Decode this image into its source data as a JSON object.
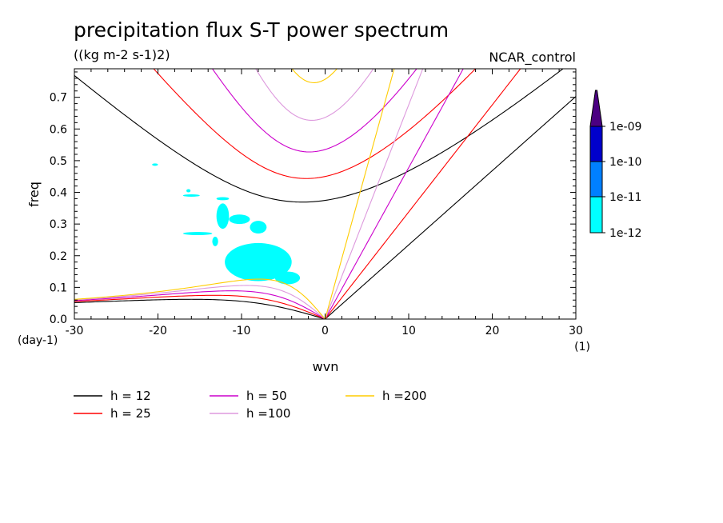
{
  "chart_data": {
    "type": "heatmap",
    "title": "precipitation flux S-T power spectrum",
    "units": "((kg m-2 s-1)2)",
    "case_label": "NCAR_control",
    "xlabel": "wvn",
    "ylabel": "freq",
    "x_unit_label": "(1)",
    "y_unit_label": "(day-1)",
    "xlim": [
      -30,
      30
    ],
    "ylim": [
      0,
      0.79
    ],
    "x_ticks": [
      -30,
      -20,
      -10,
      0,
      10,
      20,
      30
    ],
    "y_ticks": [
      0,
      0.1,
      0.2,
      0.3,
      0.4,
      0.5,
      0.6,
      0.7
    ],
    "x_tick_labels": [
      "-30",
      "-20",
      "-10",
      "0",
      "10",
      "20",
      "30"
    ],
    "y_tick_labels": [
      "0.0",
      "0.1",
      "0.2",
      "0.3",
      "0.4",
      "0.5",
      "0.6",
      "0.7"
    ],
    "colorbar": {
      "levels": [
        "1e-12",
        "1e-11",
        "1e-10",
        "1e-09"
      ],
      "colors": [
        "#00ffff",
        "#0080ff",
        "#0000cc",
        "#4b0082"
      ]
    },
    "shaded_regions": [
      {
        "level": "1e-12",
        "x": [
          -20.7,
          -20
        ],
        "y": [
          0.485,
          0.49
        ]
      },
      {
        "level": "1e-12",
        "x": [
          -16.6,
          -16.1
        ],
        "y": [
          0.4,
          0.41
        ]
      },
      {
        "level": "1e-12",
        "x": [
          -17,
          -15
        ],
        "y": [
          0.39,
          0.39
        ]
      },
      {
        "level": "1e-12",
        "x": [
          -17,
          -13.5
        ],
        "y": [
          0.275,
          0.265
        ]
      },
      {
        "level": "1e-12",
        "x": [
          -13,
          -11.5
        ],
        "y": [
          0.375,
          0.385
        ]
      },
      {
        "level": "1e-12",
        "x": [
          -13,
          -11.5
        ],
        "y": [
          0.285,
          0.365
        ]
      },
      {
        "level": "1e-12",
        "x": [
          -11.5,
          -9
        ],
        "y": [
          0.3,
          0.33
        ]
      },
      {
        "level": "1e-12",
        "x": [
          -9,
          -7
        ],
        "y": [
          0.27,
          0.31
        ]
      },
      {
        "level": "1e-12",
        "x": [
          -13.5,
          -12.8
        ],
        "y": [
          0.23,
          0.26
        ]
      },
      {
        "level": "1e-12",
        "x": [
          -12,
          -4
        ],
        "y": [
          0.12,
          0.24
        ]
      },
      {
        "level": "1e-12",
        "x": [
          -6,
          -3
        ],
        "y": [
          0.11,
          0.15
        ]
      }
    ],
    "series": [
      {
        "name": "h = 12",
        "color": "#000000",
        "equivalent_depth": 12
      },
      {
        "name": "h = 25",
        "color": "#ff0000",
        "equivalent_depth": 25
      },
      {
        "name": "h = 50",
        "color": "#cc00cc",
        "equivalent_depth": 50
      },
      {
        "name": "h =100",
        "color": "#dd99dd",
        "equivalent_depth": 100
      },
      {
        "name": "h =200",
        "color": "#ffcc00",
        "equivalent_depth": 200
      }
    ],
    "grid": false,
    "legend_position": "bottom"
  }
}
